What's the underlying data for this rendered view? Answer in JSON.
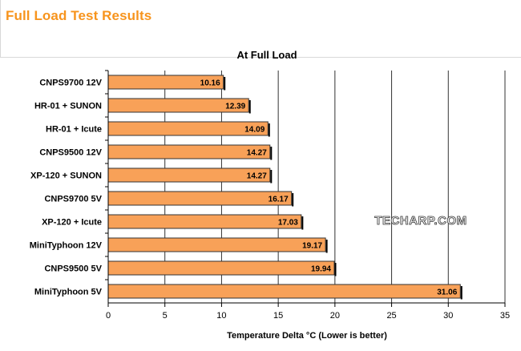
{
  "page": {
    "title": "Full Load Test Results"
  },
  "watermark": "TECHARP.COM",
  "colors": {
    "bar": "#f8a158",
    "bar_stroke": "#333333",
    "title": "#f7941d",
    "grid": "#333333"
  },
  "chart_data": {
    "type": "bar",
    "orientation": "horizontal",
    "title": "At Full Load",
    "xlabel": "Temperature Delta °C (Lower is better)",
    "ylabel": "",
    "xlim": [
      0,
      35
    ],
    "xticks": [
      0,
      5,
      10,
      15,
      20,
      25,
      30,
      35
    ],
    "grid": true,
    "categories": [
      "CNPS9700 12V",
      "HR-01 + SUNON",
      "HR-01 + Icute",
      "CNPS9500 12V",
      "XP-120 + SUNON",
      "CNPS9700 5V",
      "XP-120 + Icute",
      "MiniTyphoon 12V",
      "CNPS9500 5V",
      "MiniTyphoon 5V"
    ],
    "values": [
      10.16,
      12.39,
      14.09,
      14.27,
      14.27,
      16.17,
      17.03,
      19.17,
      19.94,
      31.06
    ],
    "data_labels": [
      "10.16",
      "12.39",
      "14.09",
      "14.27",
      "14.27",
      "16.17",
      "17.03",
      "19.17",
      "19.94",
      "31.06"
    ]
  }
}
